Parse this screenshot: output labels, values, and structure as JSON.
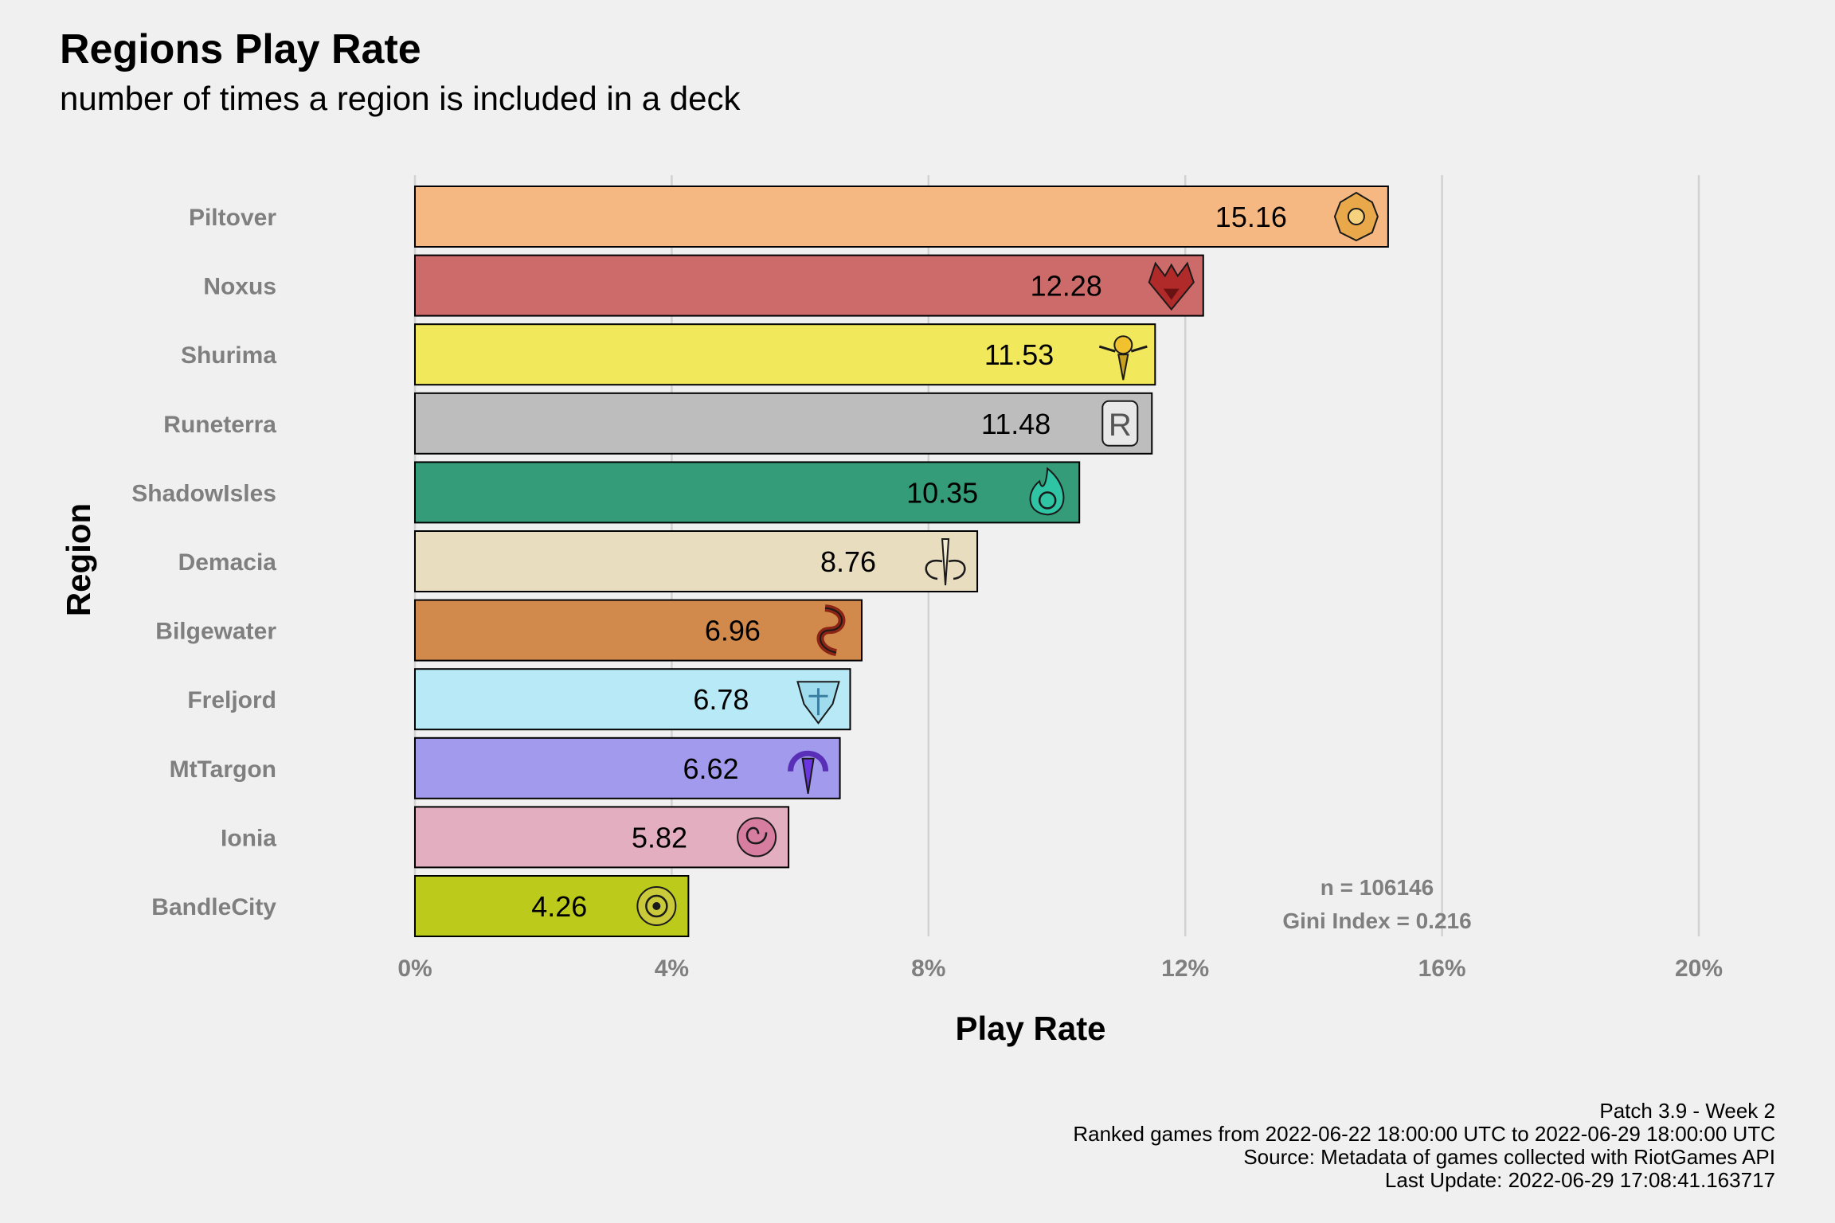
{
  "title": "Regions Play Rate",
  "subtitle": "number of times a region is included in a deck",
  "chart_data": {
    "type": "bar",
    "orientation": "horizontal",
    "xlabel": "Play Rate",
    "ylabel": "Region",
    "xlim": [
      0,
      20
    ],
    "x_ticks": [
      0,
      4,
      8,
      12,
      16,
      20
    ],
    "x_tick_labels": [
      "0%",
      "4%",
      "8%",
      "12%",
      "16%",
      "20%"
    ],
    "grid": "vertical-major",
    "legend": "none",
    "categories": [
      "Piltover",
      "Noxus",
      "Shurima",
      "Runeterra",
      "ShadowIsles",
      "Demacia",
      "Bilgewater",
      "Freljord",
      "MtTargon",
      "Ionia",
      "BandleCity"
    ],
    "values": [
      15.16,
      12.28,
      11.53,
      11.48,
      10.35,
      8.76,
      6.96,
      6.78,
      6.62,
      5.82,
      4.26
    ],
    "value_labels": [
      "15.16",
      "12.28",
      "11.53",
      "11.48",
      "10.35",
      "8.76",
      "6.96",
      "6.78",
      "6.62",
      "5.82",
      "4.26"
    ],
    "colors": [
      "#f5b882",
      "#cd6b6b",
      "#f2e85c",
      "#bdbdbd",
      "#359c7a",
      "#e8ddbe",
      "#d18a4c",
      "#b8e9f6",
      "#a29bed",
      "#e2aec0",
      "#bccb1b"
    ],
    "icons": [
      "piltover-icon",
      "noxus-icon",
      "shurima-icon",
      "runeterra-icon",
      "shadowisles-icon",
      "demacia-icon",
      "bilgewater-icon",
      "freljord-icon",
      "mttargon-icon",
      "ionia-icon",
      "bandlecity-icon"
    ],
    "annotation": {
      "line1": "n = 106146",
      "line2": "Gini Index = 0.216"
    }
  },
  "caption": {
    "line1": "Patch 3.9 - Week 2",
    "line2": "Ranked games from 2022-06-22 18:00:00 UTC to 2022-06-29 18:00:00 UTC",
    "line3": "Source: Metadata of games collected with RiotGames API",
    "line4": "Last Update: 2022-06-29 17:08:41.163717"
  }
}
